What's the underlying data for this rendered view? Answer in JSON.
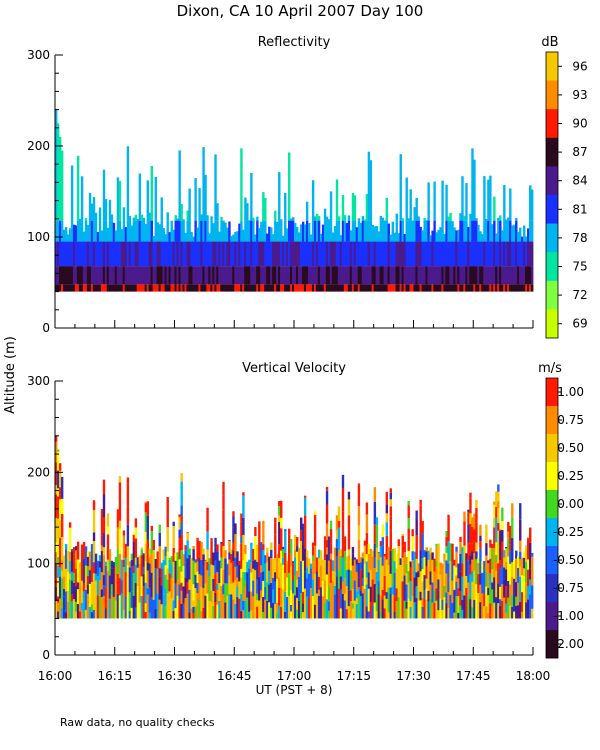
{
  "title": "Dixon, CA 10 April 2007  Day 100",
  "footnote": "Raw data, no quality checks",
  "shared_ylabel": "Altitude (m)",
  "xlabel": "UT  (PST + 8)",
  "chart_data": [
    {
      "type": "heatmap",
      "title": "Reflectivity",
      "xlabel": "UT  (PST + 8)",
      "ylabel": "Altitude (m)",
      "x_ticks": [
        "16:00",
        "16:15",
        "16:30",
        "16:45",
        "17:00",
        "17:15",
        "17:30",
        "17:45",
        "18:00"
      ],
      "xlim": [
        "16:00",
        "18:00"
      ],
      "y_ticks": [
        0,
        100,
        200,
        300
      ],
      "ylim": [
        0,
        300
      ],
      "colorbar": {
        "unit": "dB",
        "ticks": [
          "96",
          "93",
          "90",
          "87",
          "84",
          "81",
          "78",
          "75",
          "72",
          "69"
        ],
        "colors": [
          "#f5c800",
          "#ff8c00",
          "#ff1a00",
          "#2a0a1e",
          "#4b1a8c",
          "#1a30ff",
          "#00b4f0",
          "#00e6a0",
          "#80ff40",
          "#c8ff00"
        ]
      },
      "layers": [
        {
          "altitude_range": [
            40,
            50
          ],
          "approx_value": "87-90 dB"
        },
        {
          "altitude_range": [
            50,
            70
          ],
          "approx_value": "84 dB"
        },
        {
          "altitude_range": [
            70,
            100
          ],
          "approx_value": "81 dB"
        },
        {
          "altitude_range": [
            100,
            120
          ],
          "approx_value": "78 dB"
        },
        {
          "altitude_range": [
            120,
            200
          ],
          "approx_value": "75-78 dB (sporadic)"
        }
      ],
      "notes": "Echo extends up to ~240 m near 16:00"
    },
    {
      "type": "heatmap",
      "title": "Vertical Velocity",
      "xlabel": "UT  (PST + 8)",
      "ylabel": "Altitude (m)",
      "x_ticks": [
        "16:00",
        "16:15",
        "16:30",
        "16:45",
        "17:00",
        "17:15",
        "17:30",
        "17:45",
        "18:00"
      ],
      "xlim": [
        "16:00",
        "18:00"
      ],
      "y_ticks": [
        0,
        100,
        200,
        300
      ],
      "ylim": [
        0,
        300
      ],
      "colorbar": {
        "unit": "m/s",
        "ticks": [
          "1.00",
          "0.75",
          "0.50",
          "0.25",
          "0.00",
          "-0.25",
          "-0.50",
          "-0.75",
          "-1.00",
          "-2.00"
        ],
        "colors": [
          "#ff1a00",
          "#ff8c00",
          "#f5c800",
          "#ffff00",
          "#40d820",
          "#00b4f0",
          "#1a60ff",
          "#2a30c0",
          "#4b1a8c",
          "#2a0a1e"
        ]
      },
      "layers": [
        {
          "altitude_range": [
            40,
            120
          ],
          "approx_value": "-0.25 to 0.75 m/s (mixed)"
        },
        {
          "altitude_range": [
            120,
            200
          ],
          "approx_value": "0.50 to 1.00 m/s (sporadic)"
        }
      ],
      "notes": "Echo extends up to ~240 m near 16:00"
    }
  ]
}
